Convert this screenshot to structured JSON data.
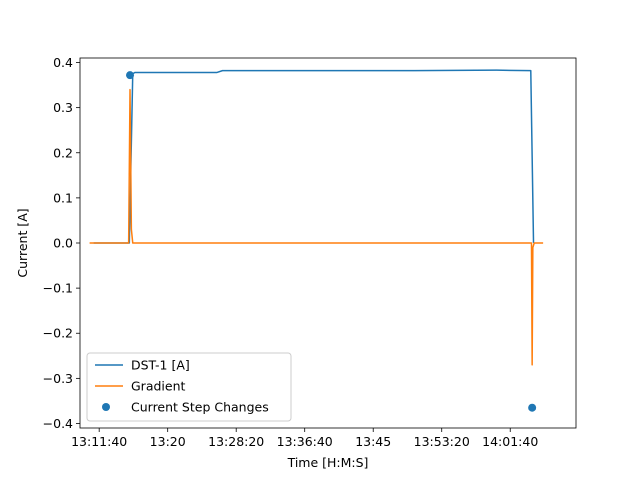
{
  "chart_data": {
    "type": "line",
    "title": "",
    "xlabel": "Time [H:M:S]",
    "ylabel": "Current [A]",
    "xlim": [
      "13:09:20",
      "14:09:40"
    ],
    "ylim": [
      -0.41,
      0.41
    ],
    "xticks": [
      "13:11:40",
      "13:20",
      "13:28:20",
      "13:36:40",
      "13:45",
      "13:53:20",
      "14:01:40"
    ],
    "xtick_values": [
      "13:11:40",
      "13:20:00",
      "13:28:20",
      "13:36:40",
      "13:45:00",
      "13:53:20",
      "14:01:40"
    ],
    "yticks": [
      "0.4",
      "0.3",
      "0.2",
      "0.1",
      "0.0",
      "−0.1",
      "−0.2",
      "−0.3",
      "−0.4"
    ],
    "ytick_values": [
      0.4,
      0.3,
      0.2,
      0.1,
      0.0,
      -0.1,
      -0.2,
      -0.3,
      -0.4
    ],
    "grid": false,
    "legend_position": "lower-left",
    "series": [
      {
        "name": "DST-1 [A]",
        "kind": "line",
        "color": "#1f77b4",
        "x": [
          "13:11:00",
          "13:15:20",
          "13:15:45",
          "13:16:00",
          "13:20:00",
          "13:26:00",
          "13:26:40",
          "13:30:00",
          "13:40:00",
          "13:50:00",
          "14:00:00",
          "14:04:10",
          "14:04:30"
        ],
        "y": [
          0.0,
          0.0,
          0.375,
          0.378,
          0.378,
          0.378,
          0.382,
          0.382,
          0.382,
          0.382,
          0.383,
          0.382,
          0.0
        ]
      },
      {
        "name": "Gradient",
        "kind": "line",
        "color": "#ff7f0e",
        "x": [
          "13:10:30",
          "13:15:15",
          "13:15:25",
          "13:15:35",
          "13:15:45",
          "14:04:15",
          "14:04:20",
          "14:04:25",
          "14:04:35",
          "14:05:40"
        ],
        "y": [
          0.0,
          0.0,
          0.34,
          0.03,
          0.0,
          0.0,
          -0.27,
          -0.01,
          0.0,
          0.0
        ]
      },
      {
        "name": "Current Step Changes",
        "kind": "scatter",
        "color": "#1f77b4",
        "x": [
          "13:15:25",
          "14:04:20"
        ],
        "y": [
          0.372,
          -0.365
        ]
      }
    ]
  }
}
